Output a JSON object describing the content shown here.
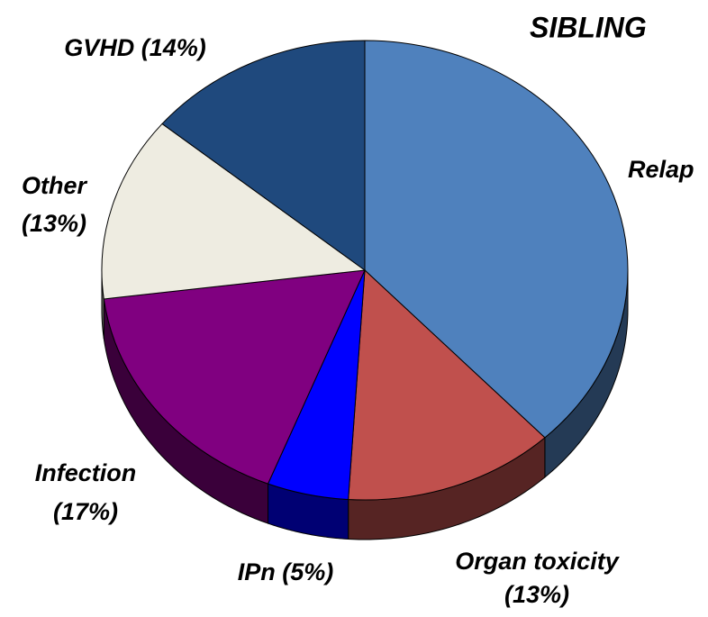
{
  "chart_data": {
    "type": "pie",
    "title": "SIBLING",
    "categories": [
      "Relap",
      "Organ toxicity",
      "IPn",
      "Infection",
      "Other",
      "GVHD"
    ],
    "values": [
      38,
      13,
      5,
      17,
      13,
      14
    ],
    "value_labels": [
      null,
      "(13%)",
      "(5%)",
      "(17%)",
      "(13%)",
      "(14%)"
    ],
    "colors": [
      "#4f81bd",
      "#c0504d",
      "#0000ff",
      "#800080",
      "#eeece1",
      "#1f497d"
    ]
  }
}
